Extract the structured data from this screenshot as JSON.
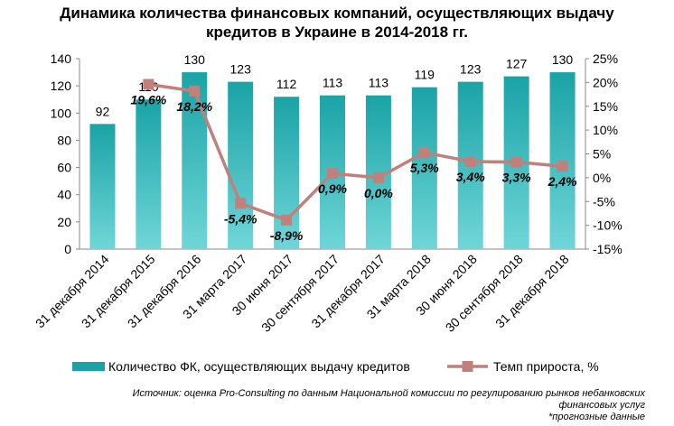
{
  "title_line1": "Динамика количества финансовых компаний, осуществляющих выдачу",
  "title_line2": "кредитов в Украине в 2014-2018 гг.",
  "source_line1": "Источник: оценка Pro-Consulting по данным Национальной комиссии по регулированию рынков небанковских",
  "source_line2": "финансовых услуг",
  "forecast_note": "*прогнозные данные",
  "colors": {
    "bar": "#1aa3a6",
    "bar_light": "#6fd6d8",
    "line": "#c0807c",
    "axis": "#888888"
  },
  "chart_data": {
    "type": "bar",
    "categories": [
      "31 декабря 2014",
      "31 декабря 2015",
      "31 декабря 2016",
      "31 марта 2017",
      "30 июня 2017",
      "30 сентября 2017",
      "31 декабря 2017",
      "31 марта 2018",
      "30 июня 2018",
      "30 сентября 2018",
      "31 декабря 2018"
    ],
    "series": [
      {
        "name": "Количество ФК, осуществляющих выдачу кредитов",
        "type": "bar",
        "axis": "left",
        "values": [
          92,
          110,
          130,
          123,
          112,
          113,
          113,
          119,
          123,
          127,
          130
        ],
        "labels": [
          "92",
          "110",
          "130",
          "123",
          "112",
          "113",
          "113",
          "119",
          "123",
          "127",
          "130"
        ]
      },
      {
        "name": "Темп прироста, %",
        "type": "line",
        "axis": "right",
        "values": [
          null,
          19.6,
          18.2,
          -5.4,
          -8.9,
          0.9,
          0.0,
          5.3,
          3.4,
          3.3,
          2.4
        ],
        "labels": [
          null,
          "19,6%",
          "18,2%",
          "-5,4%",
          "-8,9%",
          "0,9%",
          "0,0%",
          "5,3%",
          "3,4%",
          "3,3%",
          "2,4%"
        ]
      }
    ],
    "left_axis": {
      "ylim": [
        0,
        140
      ],
      "ticks": [
        0,
        20,
        40,
        60,
        80,
        100,
        120,
        140
      ]
    },
    "right_axis": {
      "ylim": [
        -15,
        25
      ],
      "ticks": [
        "-15%",
        "-10%",
        "-5%",
        "0%",
        "5%",
        "10%",
        "15%",
        "20%",
        "25%"
      ]
    },
    "legend_placement": "bottom",
    "grid": false
  }
}
